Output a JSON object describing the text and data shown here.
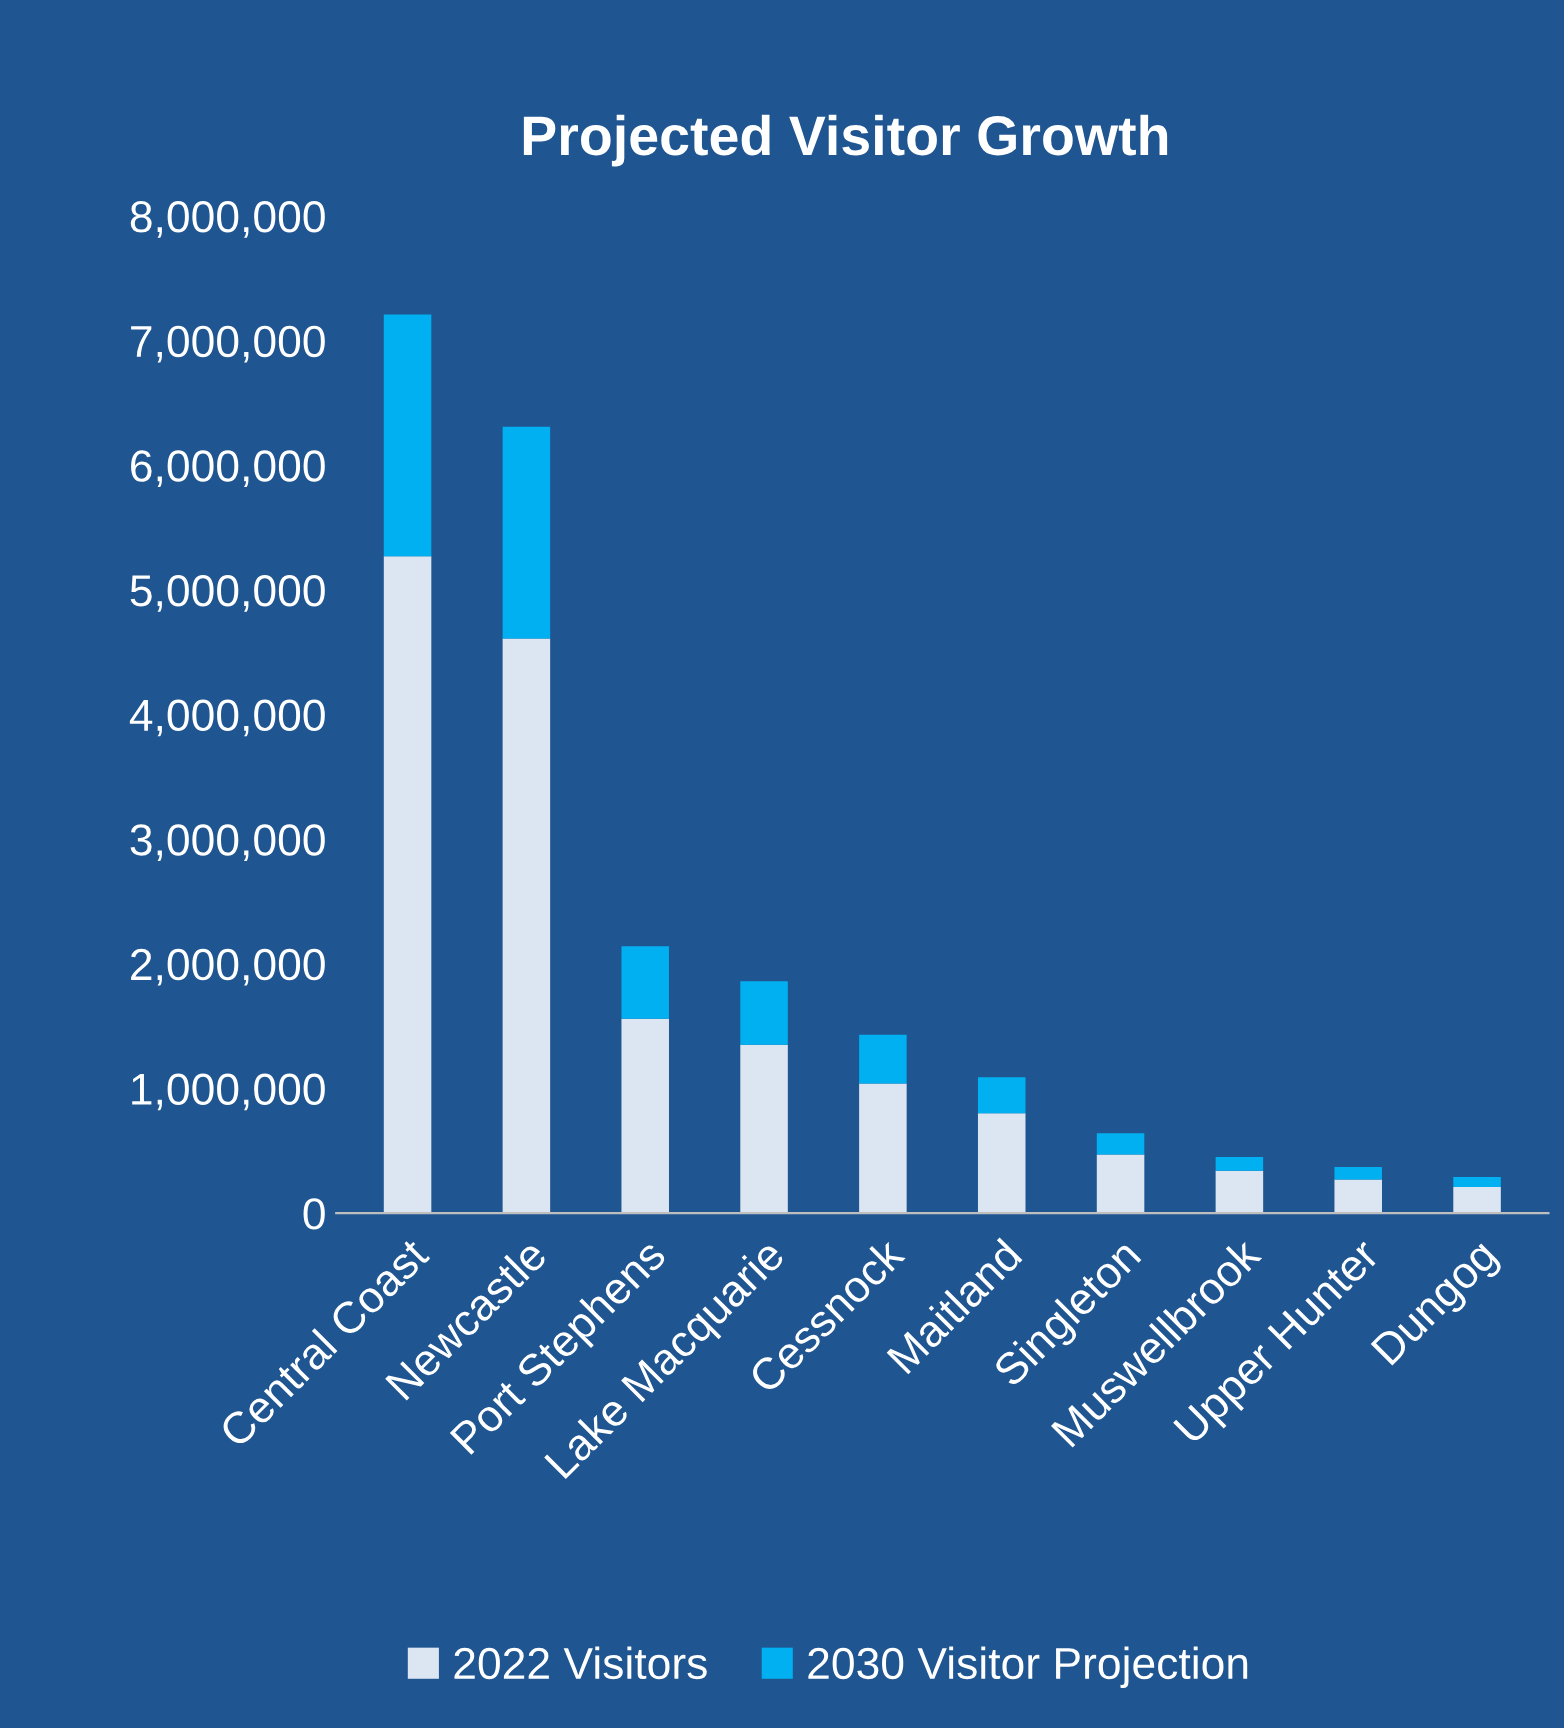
{
  "chart_data": {
    "type": "bar",
    "title": "Projected Visitor Growth",
    "stacked": true,
    "categories": [
      "Central Coast",
      "Newcastle",
      "Port Stephens",
      "Lake Macquarie",
      "Cessnock",
      "Maitland",
      "Singleton",
      "Muswellbrook",
      "Upper Hunter",
      "Dungog"
    ],
    "series": [
      {
        "name": "2022 Visitors",
        "color": "#dce6f2",
        "values": [
          5270000,
          4610000,
          1560000,
          1350000,
          1040000,
          800000,
          470000,
          340000,
          270000,
          210000
        ]
      },
      {
        "name": "2030 Visitor Projection",
        "color": "#00b0f0",
        "values": [
          1940000,
          1700000,
          580000,
          510000,
          390000,
          290000,
          170000,
          110000,
          100000,
          80000
        ]
      }
    ],
    "ylim": [
      0,
      8000000
    ],
    "yticks": [
      {
        "value": 0,
        "label": "0"
      },
      {
        "value": 1000000,
        "label": "1,000,000"
      },
      {
        "value": 2000000,
        "label": "2,000,000"
      },
      {
        "value": 3000000,
        "label": "3,000,000"
      },
      {
        "value": 4000000,
        "label": "4,000,000"
      },
      {
        "value": 5000000,
        "label": "5,000,000"
      },
      {
        "value": 6000000,
        "label": "6,000,000"
      },
      {
        "value": 7000000,
        "label": "7,000,000"
      },
      {
        "value": 8000000,
        "label": "8,000,000"
      }
    ],
    "grid": false,
    "legend": "bottom"
  }
}
